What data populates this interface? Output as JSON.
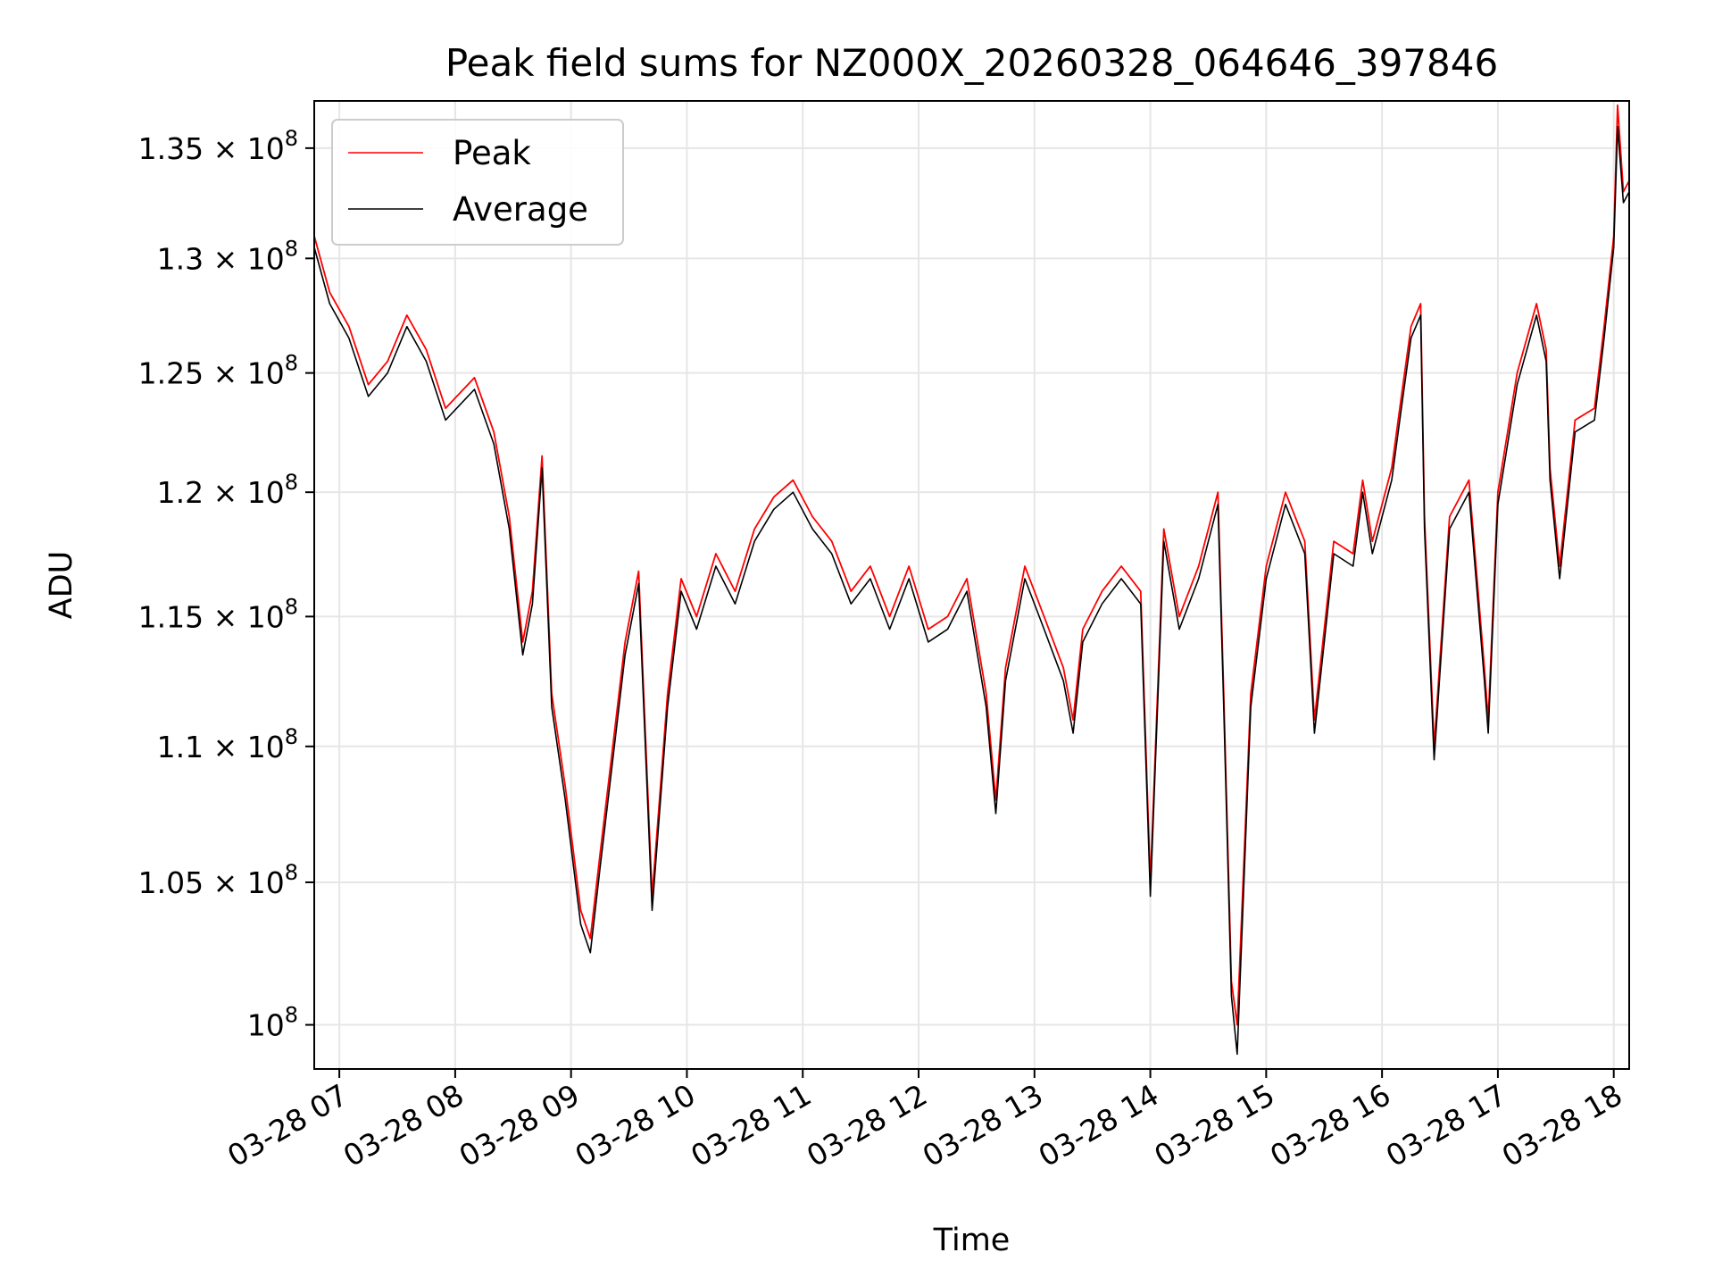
{
  "chart_data": {
    "type": "line",
    "title": "Peak field sums for NZ000X_20260328_064646_397846",
    "xlabel": "Time",
    "ylabel": "ADU",
    "y_scale": "log",
    "xlim": [
      "2026-03-28 06:47",
      "2026-03-28 18:08"
    ],
    "ylim": [
      98500000,
      137200000
    ],
    "grid": true,
    "legend": "upper left",
    "x_ticks": [
      "03-28 07",
      "03-28 08",
      "03-28 09",
      "03-28 10",
      "03-28 11",
      "03-28 12",
      "03-28 13",
      "03-28 14",
      "03-28 15",
      "03-28 16",
      "03-28 17",
      "03-28 18"
    ],
    "y_ticks": [
      {
        "value": 100000000,
        "mantissa": "",
        "exponent": "8"
      },
      {
        "value": 105000000,
        "mantissa": "1.05",
        "exponent": "8"
      },
      {
        "value": 110000000,
        "mantissa": "1.1",
        "exponent": "8"
      },
      {
        "value": 115000000,
        "mantissa": "1.15",
        "exponent": "8"
      },
      {
        "value": 120000000,
        "mantissa": "1.2",
        "exponent": "8"
      },
      {
        "value": 125000000,
        "mantissa": "1.25",
        "exponent": "8"
      },
      {
        "value": 130000000,
        "mantissa": "1.3",
        "exponent": "8"
      },
      {
        "value": 135000000,
        "mantissa": "1.35",
        "exponent": "8"
      }
    ],
    "x": [
      "06:47",
      "06:55",
      "07:05",
      "07:15",
      "07:25",
      "07:35",
      "07:45",
      "07:55",
      "08:10",
      "08:20",
      "08:28",
      "08:35",
      "08:40",
      "08:45",
      "08:50",
      "08:57",
      "09:05",
      "09:10",
      "09:15",
      "09:20",
      "09:28",
      "09:35",
      "09:42",
      "09:50",
      "09:57",
      "10:05",
      "10:15",
      "10:25",
      "10:35",
      "10:45",
      "10:55",
      "11:05",
      "11:15",
      "11:25",
      "11:35",
      "11:45",
      "11:55",
      "12:05",
      "12:15",
      "12:25",
      "12:35",
      "12:40",
      "12:45",
      "12:55",
      "13:05",
      "13:15",
      "13:20",
      "13:25",
      "13:35",
      "13:45",
      "13:55",
      "14:00",
      "14:07",
      "14:15",
      "14:25",
      "14:35",
      "14:38",
      "14:42",
      "14:45",
      "14:52",
      "15:00",
      "15:10",
      "15:20",
      "15:25",
      "15:35",
      "15:45",
      "15:50",
      "15:55",
      "16:05",
      "16:10",
      "16:15",
      "16:20",
      "16:22",
      "16:27",
      "16:35",
      "16:45",
      "16:53",
      "16:55",
      "17:00",
      "17:10",
      "17:20",
      "17:25",
      "17:27",
      "17:32",
      "17:40",
      "17:50",
      "17:55",
      "18:00",
      "18:02",
      "18:05",
      "18:08"
    ],
    "series": [
      {
        "name": "Peak",
        "color": "#ff0000",
        "values": [
          131000000,
          128500000,
          127000000,
          124500000,
          125500000,
          127500000,
          126000000,
          123500000,
          124800000,
          122500000,
          119000000,
          114000000,
          116000000,
          121500000,
          112000000,
          108500000,
          104000000,
          103000000,
          106000000,
          109000000,
          114000000,
          116800000,
          104500000,
          112000000,
          116500000,
          115000000,
          117500000,
          116000000,
          118500000,
          119800000,
          120500000,
          119000000,
          118000000,
          116000000,
          117000000,
          115000000,
          117000000,
          114500000,
          115000000,
          116500000,
          112000000,
          108000000,
          113000000,
          117000000,
          115000000,
          113000000,
          111000000,
          114500000,
          116000000,
          117000000,
          116000000,
          105000000,
          118500000,
          115000000,
          117000000,
          120000000,
          112000000,
          101500000,
          100000000,
          112000000,
          117000000,
          120000000,
          118000000,
          111000000,
          118000000,
          117500000,
          120500000,
          118000000,
          121000000,
          124000000,
          127000000,
          128000000,
          119000000,
          110000000,
          119000000,
          120500000,
          113000000,
          111000000,
          120000000,
          125000000,
          128000000,
          126000000,
          121000000,
          117000000,
          123000000,
          123500000,
          127000000,
          131000000,
          137000000,
          133000000,
          133500000
        ]
      },
      {
        "name": "Average",
        "color": "#000000",
        "values": [
          130500000,
          128000000,
          126500000,
          124000000,
          125000000,
          127000000,
          125500000,
          123000000,
          124300000,
          122000000,
          118500000,
          113500000,
          115500000,
          121000000,
          111500000,
          108000000,
          103500000,
          102500000,
          105500000,
          108500000,
          113500000,
          116300000,
          104000000,
          111500000,
          116000000,
          114500000,
          117000000,
          115500000,
          118000000,
          119300000,
          120000000,
          118500000,
          117500000,
          115500000,
          116500000,
          114500000,
          116500000,
          114000000,
          114500000,
          116000000,
          111500000,
          107500000,
          112500000,
          116500000,
          114500000,
          112500000,
          110500000,
          114000000,
          115500000,
          116500000,
          115500000,
          104500000,
          118000000,
          114500000,
          116500000,
          119500000,
          111500000,
          101000000,
          99000000,
          111500000,
          116500000,
          119500000,
          117500000,
          110500000,
          117500000,
          117000000,
          120000000,
          117500000,
          120500000,
          123500000,
          126500000,
          127500000,
          118500000,
          109500000,
          118500000,
          120000000,
          112500000,
          110500000,
          119500000,
          124500000,
          127500000,
          125500000,
          120500000,
          116500000,
          122500000,
          123000000,
          126500000,
          130500000,
          136000000,
          132500000,
          133000000
        ]
      }
    ]
  }
}
